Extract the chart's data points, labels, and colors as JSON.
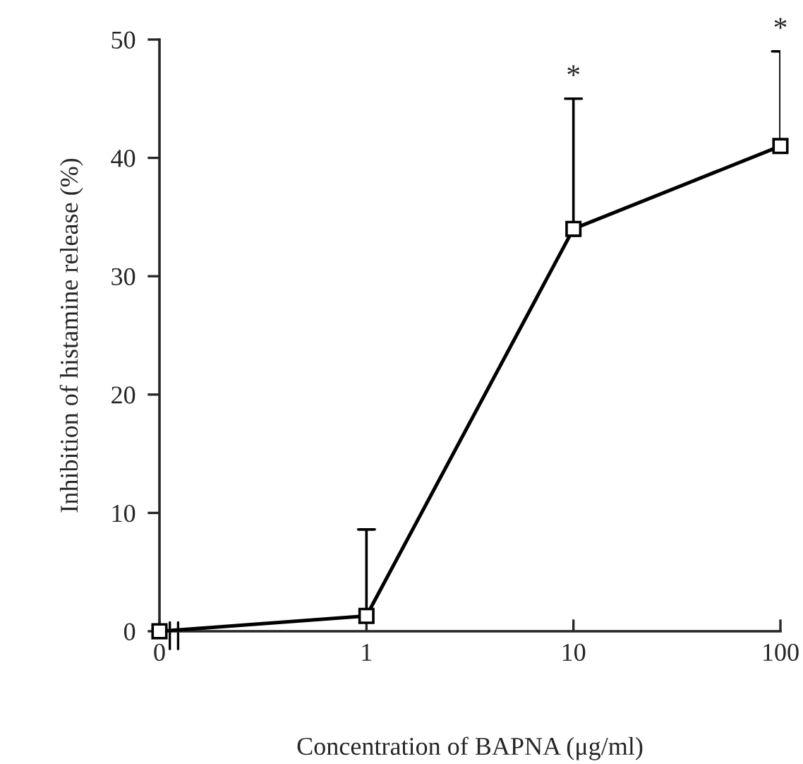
{
  "chart_data": {
    "type": "line",
    "xlabel": "Concentration of BAPNA (μg/ml)",
    "ylabel": "Inhibition of histamine release (%)",
    "categories": [
      "0",
      "1",
      "10",
      "100"
    ],
    "series": [
      {
        "color": "#000000",
        "values": [
          0,
          1.3,
          34,
          41
        ],
        "errors": [
          null,
          [
            1.3,
            8.6
          ],
          [
            34,
            45
          ],
          [
            41,
            49
          ]
        ]
      }
    ],
    "ylim": [
      0,
      50
    ],
    "yticks": [
      0,
      10,
      20,
      30,
      40,
      50
    ],
    "marker": "square",
    "line_style": "solid",
    "grid": false,
    "legend": false,
    "annotations": [
      "*",
      "*"
    ]
  }
}
